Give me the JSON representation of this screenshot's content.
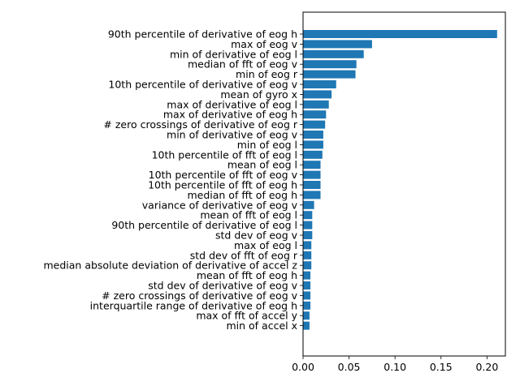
{
  "chart_data": {
    "type": "bar",
    "orientation": "horizontal",
    "title": "",
    "xlabel": "",
    "ylabel": "",
    "bar_color": "#1f77b4",
    "xlim": [
      0,
      0.22
    ],
    "xticks": [
      0.0,
      0.05,
      0.1,
      0.15,
      0.2
    ],
    "xtick_labels": [
      "0.00",
      "0.05",
      "0.10",
      "0.15",
      "0.20"
    ],
    "grid": false,
    "categories": [
      "90th percentile of derivative of eog h",
      "max of eog v",
      "min of derivative of eog l",
      "median of fft of eog v",
      "min of eog r",
      "10th percentile of derivative of eog v",
      "mean of gyro x",
      "max of derivative of eog l",
      "max of derivative of eog h",
      "# zero crossings of derivative of eog r",
      "min of derivative of eog v",
      "min of eog l",
      "10th percentile of fft of eog l",
      "mean of eog l",
      "10th percentile of fft of eog v",
      "10th percentile of fft of eog h",
      "median of fft of eog h",
      "variance of derivative of eog v",
      "mean of fft of eog l",
      "90th percentile of derivative of eog l",
      "std dev of eog v",
      "max of eog l",
      "std dev of fft of eog r",
      "median absolute deviation of derivative of accel z",
      "mean of fft of eog h",
      "std dev of derivative of eog v",
      "# zero crossings of derivative of eog v",
      "interquartile range of derivative of eog h",
      "max of fft of accel y",
      "min of accel x"
    ],
    "values": [
      0.211,
      0.075,
      0.066,
      0.058,
      0.057,
      0.036,
      0.031,
      0.028,
      0.025,
      0.024,
      0.022,
      0.022,
      0.021,
      0.019,
      0.019,
      0.019,
      0.019,
      0.012,
      0.01,
      0.01,
      0.01,
      0.009,
      0.009,
      0.009,
      0.008,
      0.008,
      0.008,
      0.008,
      0.007,
      0.007
    ]
  }
}
